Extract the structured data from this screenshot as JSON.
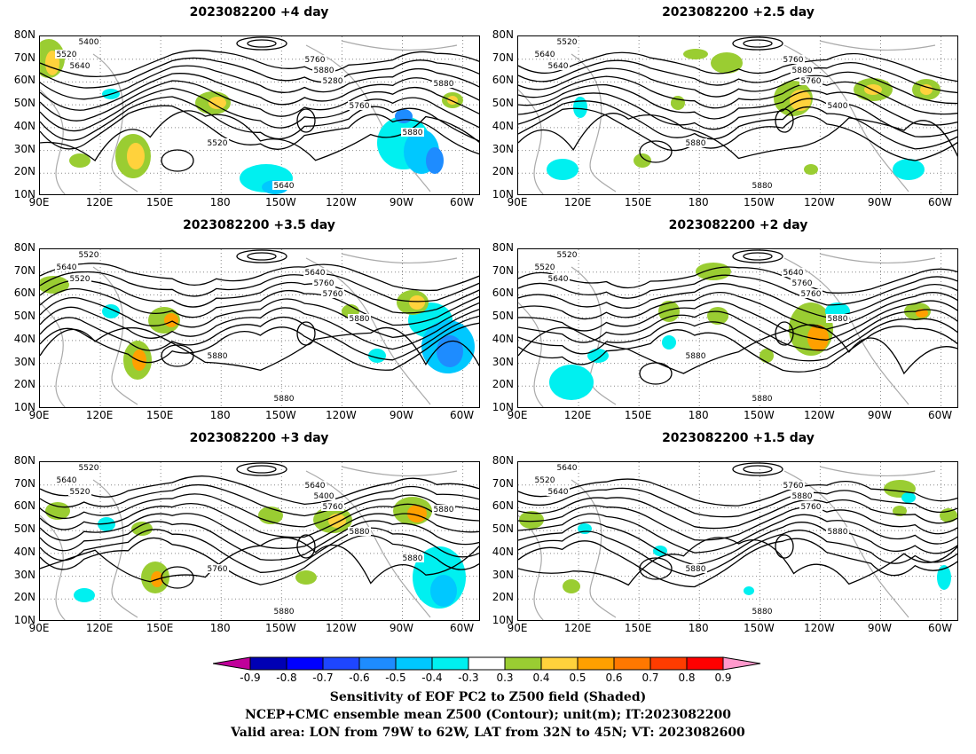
{
  "panels": [
    {
      "title": "2023082200  +4 day",
      "labels": [
        "5400",
        "5520",
        "5640",
        "5760",
        "5880",
        "5280",
        "5520",
        "5640",
        "5760",
        "5880",
        "5880"
      ]
    },
    {
      "title": "2023082200  +2.5 day",
      "labels": [
        "5520",
        "5640",
        "5640",
        "5760",
        "5880",
        "5760",
        "5880",
        "5880",
        "5400"
      ]
    },
    {
      "title": "2023082200  +3.5 day",
      "labels": [
        "5520",
        "5640",
        "5520",
        "5640",
        "5760",
        "5760",
        "5880",
        "5880",
        "5880"
      ]
    },
    {
      "title": "2023082200  +2 day",
      "labels": [
        "5520",
        "5520",
        "5640",
        "5640",
        "5760",
        "5760",
        "5880",
        "5880",
        "5880"
      ]
    },
    {
      "title": "2023082200  +3 day",
      "labels": [
        "5520",
        "5640",
        "5520",
        "5640",
        "5400",
        "5760",
        "5760",
        "5880",
        "5880",
        "5880",
        "5880"
      ]
    },
    {
      "title": "2023082200  +1.5 day",
      "labels": [
        "5640",
        "5520",
        "5640",
        "5760",
        "5880",
        "5760",
        "5880",
        "5880",
        "5880"
      ]
    }
  ],
  "axes": {
    "lat_ticks": [
      "80N",
      "70N",
      "60N",
      "50N",
      "40N",
      "30N",
      "20N",
      "10N"
    ],
    "lon_ticks": [
      "90E",
      "120E",
      "150E",
      "180",
      "150W",
      "120W",
      "90W",
      "60W"
    ]
  },
  "colorbar": {
    "labels": [
      "-0.9",
      "-0.8",
      "-0.7",
      "-0.6",
      "-0.5",
      "-0.4",
      "-0.3",
      "0.3",
      "0.4",
      "0.5",
      "0.6",
      "0.7",
      "0.8",
      "0.9"
    ],
    "colors": [
      "#c0009a",
      "#0000b4",
      "#0000ff",
      "#1e46ff",
      "#1e8cff",
      "#00c8ff",
      "#00f0f0",
      "#ffffff",
      "#9acd32",
      "#ffd23c",
      "#ffa000",
      "#ff7800",
      "#ff3c00",
      "#ff0000",
      "#ff99cc"
    ]
  },
  "captions": [
    "Sensitivity of EOF PC2 to Z500 field (Shaded)",
    "NCEP+CMC ensemble mean Z500 (Contour); unit(m); IT:2023082200",
    "Valid area: LON from 79W to 62W, LAT from 32N to 45N; VT: 2023082600"
  ]
}
